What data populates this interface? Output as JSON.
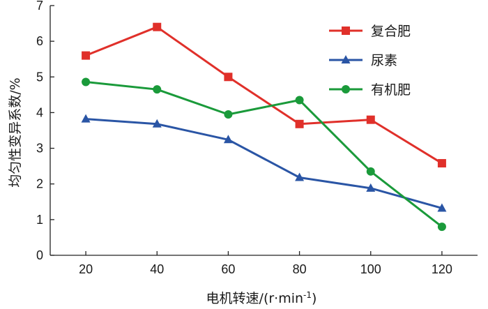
{
  "chart_data": {
    "type": "line",
    "x": [
      20,
      40,
      60,
      80,
      100,
      120
    ],
    "xticks": [
      "20",
      "40",
      "60",
      "80",
      "100",
      "120"
    ],
    "yticks": [
      "0",
      "1",
      "2",
      "3",
      "4",
      "5",
      "6",
      "7"
    ],
    "xlim": [
      10,
      130
    ],
    "ylim": [
      0,
      7
    ],
    "xlabel": "电机转速/(r·min",
    "xlabel_sup": "-1",
    "xlabel_close": ")",
    "ylabel": "均匀性变异系数/%",
    "grid": false,
    "legend_position": "top-right",
    "series": [
      {
        "name": "复合肥",
        "color": "#e0302a",
        "marker": "square",
        "values": [
          5.6,
          6.4,
          5.0,
          3.68,
          3.8,
          2.58
        ]
      },
      {
        "name": "尿素",
        "color": "#2a55a5",
        "marker": "triangle",
        "values": [
          3.82,
          3.68,
          3.24,
          2.18,
          1.88,
          1.32
        ]
      },
      {
        "name": "有机肥",
        "color": "#1a9a3a",
        "marker": "circle",
        "values": [
          4.86,
          4.65,
          3.95,
          4.35,
          2.35,
          0.8
        ]
      }
    ]
  }
}
